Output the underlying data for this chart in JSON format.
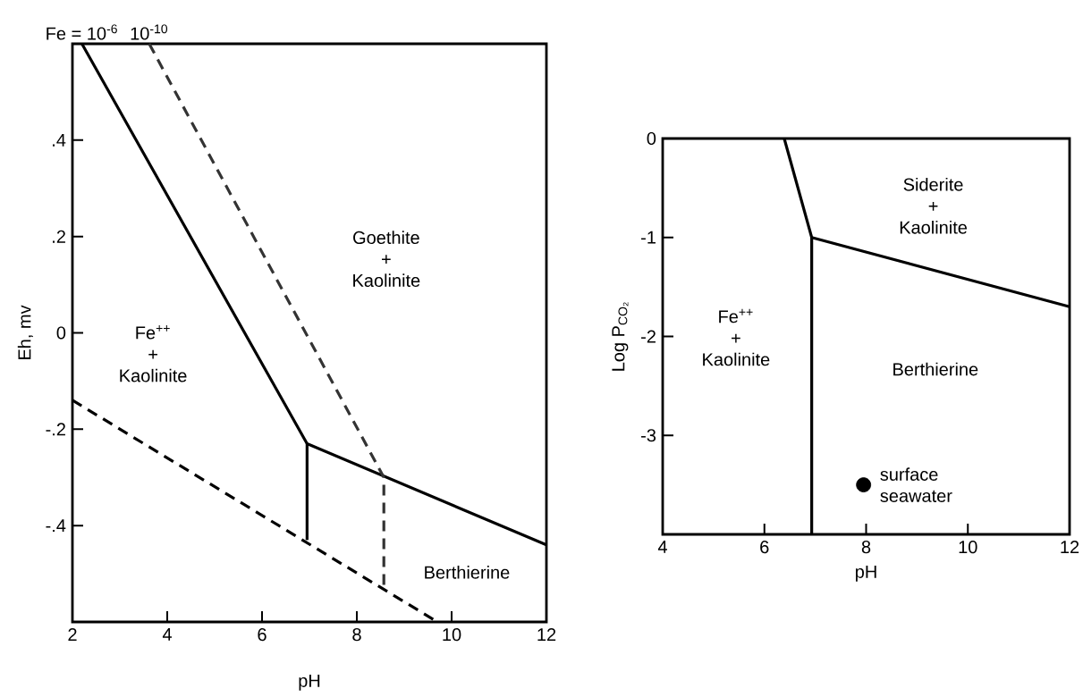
{
  "chart_data": [
    {
      "type": "line",
      "xlabel": "pH",
      "ylabel": "Eh, mv",
      "xlim": [
        2,
        12
      ],
      "ylim": [
        -0.6,
        0.6
      ],
      "xticks": [
        2,
        4,
        6,
        8,
        10,
        12
      ],
      "yticks": [
        {
          "value": 0.4,
          "label": ".4"
        },
        {
          "value": 0.2,
          "label": ".2"
        },
        0,
        {
          "value": -0.2,
          "label": "-.2"
        },
        {
          "value": -0.4,
          "label": "-.4"
        }
      ],
      "series": [
        {
          "color": "#000000",
          "line_style": "solid",
          "x": [
            2.2,
            6.95,
            12
          ],
          "values": [
            0.6,
            -0.23,
            -0.44
          ]
        },
        {
          "color": "#000000",
          "line_style": "solid",
          "x": [
            6.95,
            6.95
          ],
          "values": [
            -0.23,
            -0.43
          ]
        },
        {
          "color": "#000000",
          "line_style": "dashed",
          "x": [
            2,
            9.7
          ],
          "values": [
            -0.14,
            -0.6
          ]
        },
        {
          "color": "#333333",
          "line_style": "dashed",
          "x": [
            3.62,
            8.57,
            8.57
          ],
          "values": [
            0.6,
            -0.3,
            -0.53
          ]
        }
      ],
      "annotations": [
        {
          "text": "Fe = 10$^{-6}$",
          "x": 2.2,
          "y": 0.6
        },
        {
          "text": "10$^{-10}$",
          "x": 3.62,
          "y": 0.6
        },
        "Goethite + Kaolinite",
        "Fe$^{++}$ + Kaolinite",
        "Berthierine"
      ]
    },
    {
      "type": "line",
      "xlabel": "pH",
      "ylabel": "Log P$_{CO₂}$",
      "xlim": [
        4,
        12
      ],
      "ylim": [
        -4,
        0
      ],
      "xticks": [
        4,
        6,
        8,
        10,
        12
      ],
      "yticks": [
        0,
        -1,
        -2,
        -3
      ],
      "series": [
        {
          "color": "#000000",
          "line_style": "solid",
          "x": [
            6.39,
            6.93,
            12
          ],
          "values": [
            0,
            -1,
            -1.7
          ]
        },
        {
          "color": "#000000",
          "line_style": "solid",
          "x": [
            6.93,
            6.93
          ],
          "values": [
            -1,
            -4
          ]
        },
        {
          "type": "scatter",
          "color": "#000000",
          "x": [
            7.95
          ],
          "values": [
            -3.5
          ]
        }
      ],
      "annotations": [
        "Siderite + Kaolinite",
        "Fe$^{++}$ + Kaolinite",
        "Berthierine",
        "surface seawater"
      ]
    }
  ]
}
